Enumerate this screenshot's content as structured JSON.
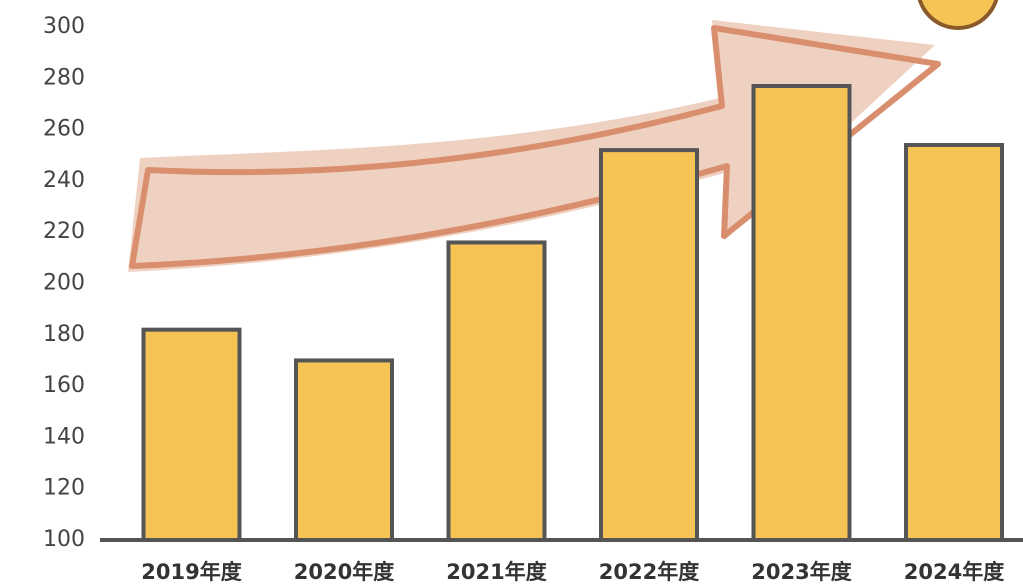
{
  "chart_data": {
    "type": "bar",
    "categories": [
      "2019年度",
      "2020年度",
      "2021年度",
      "2022年度",
      "2023年度",
      "2024年度"
    ],
    "values": [
      182,
      170,
      216,
      252,
      277,
      254
    ],
    "color": "#f5c454",
    "ylim": [
      100,
      300
    ],
    "yticks": [
      100,
      120,
      140,
      160,
      180,
      200,
      220,
      240,
      260,
      280,
      300
    ]
  }
}
